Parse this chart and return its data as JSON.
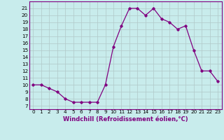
{
  "hours": [
    0,
    1,
    2,
    3,
    4,
    5,
    6,
    7,
    8,
    9,
    10,
    11,
    12,
    13,
    14,
    15,
    16,
    17,
    18,
    19,
    20,
    21,
    22,
    23
  ],
  "values": [
    10,
    10,
    9.5,
    9,
    8,
    7.5,
    7.5,
    7.5,
    7.5,
    10,
    15.5,
    18.5,
    21,
    21,
    20,
    21,
    19.5,
    19,
    18,
    18.5,
    15,
    12,
    12,
    10.5
  ],
  "line_color": "#800080",
  "marker": "D",
  "marker_size": 1.8,
  "line_width": 0.9,
  "xlabel": "Windchill (Refroidissement éolien,°C)",
  "xlabel_fontsize": 6.0,
  "ylabel_ticks": [
    7,
    8,
    9,
    10,
    11,
    12,
    13,
    14,
    15,
    16,
    17,
    18,
    19,
    20,
    21
  ],
  "ylim": [
    6.5,
    22.0
  ],
  "xlim": [
    -0.5,
    23.5
  ],
  "bg_color": "#c8ecec",
  "grid_color": "#b0c8c8",
  "tick_fontsize": 5.2
}
